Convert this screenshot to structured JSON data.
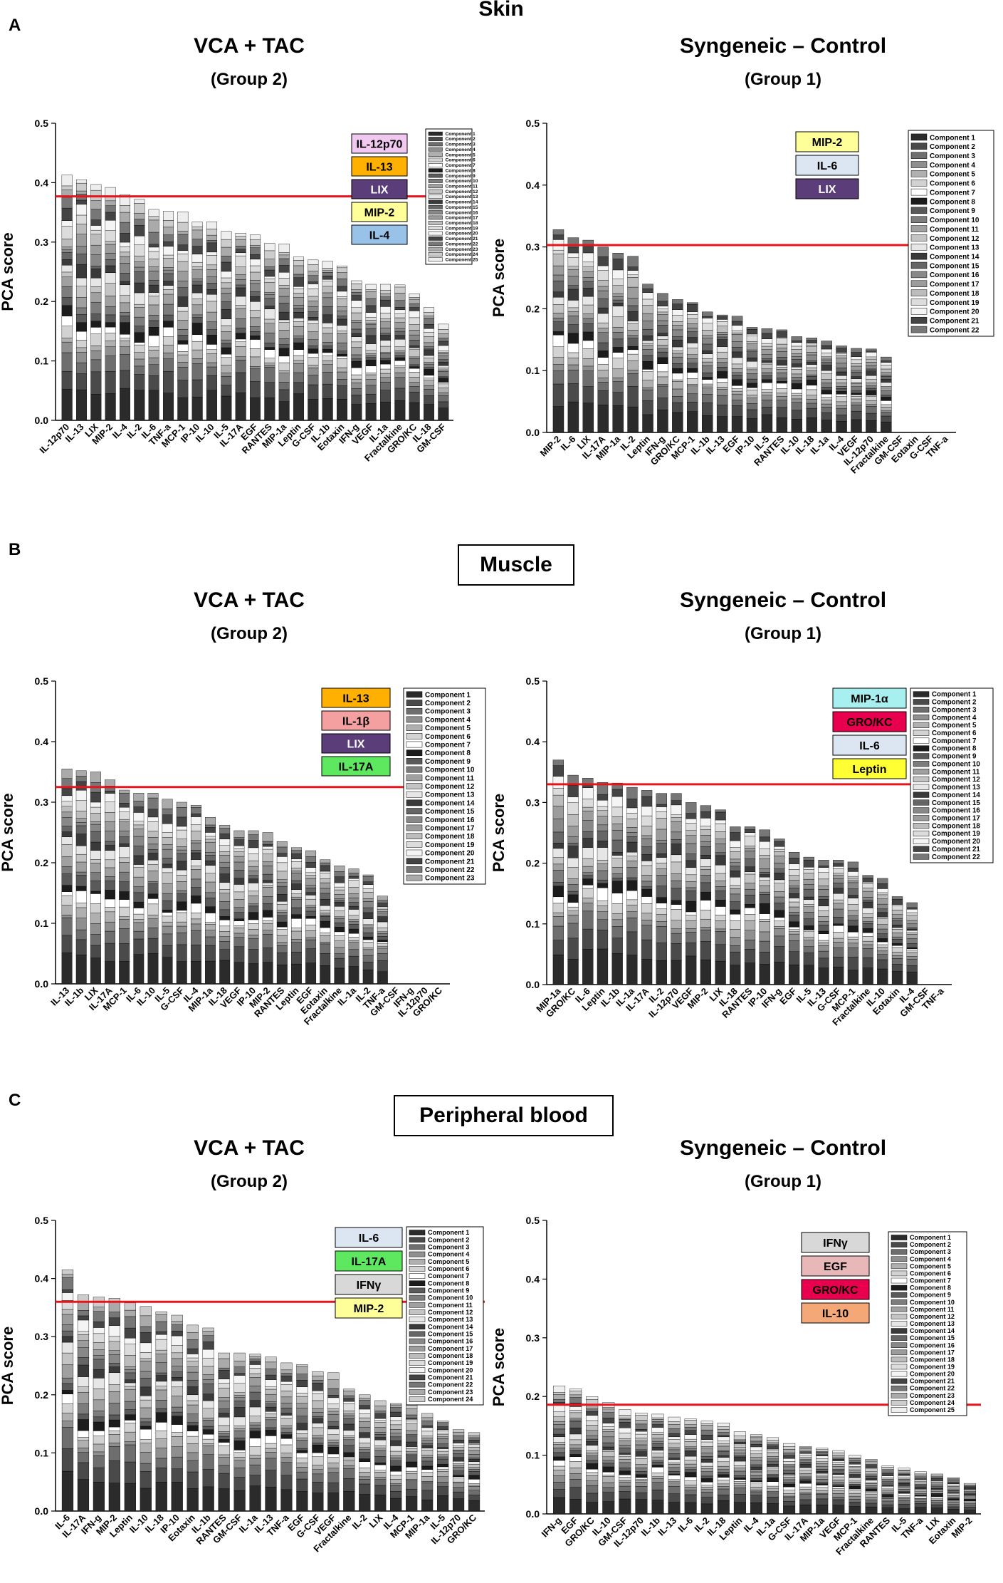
{
  "sections": [
    {
      "letter": "A",
      "title": "Skin"
    },
    {
      "letter": "B",
      "title": "Muscle"
    },
    {
      "letter": "C",
      "title": "Peripheral blood"
    }
  ],
  "chart_data": [
    {
      "type": "bar",
      "stacked": true,
      "section": "Skin",
      "title": "VCA + TAC",
      "subtitle": "(Group 2)",
      "ylabel": "PCA score",
      "ylim": [
        0,
        0.5
      ],
      "yticks": [
        "0.0",
        "0.1",
        "0.2",
        "0.3",
        "0.4",
        "0.5"
      ],
      "threshold": 0.377,
      "categories": [
        "IL-12p70",
        "IL-13",
        "LIX",
        "MIP-2",
        "IL-4",
        "IL-2",
        "IL-6",
        "TNF-a",
        "MCP-1",
        "IP-10",
        "IL-10",
        "IL-5",
        "IL-17A",
        "EGF",
        "RANTES",
        "MIP-1a",
        "Leptin",
        "G-CSF",
        "IL-1b",
        "Eotaxin",
        "IFN-g",
        "VEGF",
        "IL-1a",
        "Fractalkine",
        "GRO/KC",
        "IL-18",
        "GM-CSF"
      ],
      "values": [
        0.413,
        0.405,
        0.397,
        0.392,
        0.38,
        0.372,
        0.355,
        0.352,
        0.351,
        0.334,
        0.334,
        0.318,
        0.315,
        0.312,
        0.298,
        0.297,
        0.275,
        0.27,
        0.268,
        0.26,
        0.235,
        0.229,
        0.229,
        0.228,
        0.213,
        0.19,
        0.162
      ],
      "legend": [
        "Component 1",
        "Component 2",
        "Component 3",
        "Component 4",
        "Component 5",
        "Component 6",
        "Component 7",
        "Component 8",
        "Component 9",
        "Component 10",
        "Component 11",
        "Component 12",
        "Component 13",
        "Component 14",
        "Component 15",
        "Component 16",
        "Component 17",
        "Component 18",
        "Component 19",
        "Component 20",
        "Component 21",
        "Component 22",
        "Component 23",
        "Component 24",
        "Component 25"
      ],
      "highlights": [
        {
          "label": "IL-12p70",
          "color": "#f0c8f0"
        },
        {
          "label": "IL-13",
          "color": "#ffb000"
        },
        {
          "label": "LIX",
          "color": "#5b3d7a",
          "text_color": "#ffffff"
        },
        {
          "label": "MIP-2",
          "color": "#ffff99"
        },
        {
          "label": "IL-4",
          "color": "#99c2e8"
        }
      ]
    },
    {
      "type": "bar",
      "stacked": true,
      "section": "Skin",
      "title": "Syngeneic – Control",
      "subtitle": "(Group 1)",
      "ylabel": "PCA score",
      "ylim": [
        0,
        0.5
      ],
      "yticks": [
        "0.0",
        "0.1",
        "0.2",
        "0.3",
        "0.4",
        "0.5"
      ],
      "threshold": 0.303,
      "categories": [
        "MIP-2",
        "IL-6",
        "LIX",
        "IL-17A",
        "MIP-1a",
        "IL-2",
        "Leptin",
        "IFN-g",
        "GRO/KC",
        "MCP-1",
        "IL-1b",
        "IL-13",
        "EGF",
        "IP-10",
        "IL-5",
        "RANTES",
        "IL-10",
        "IL-18",
        "IL-1a",
        "IL-4",
        "VEGF",
        "IL-12p70",
        "Fractalkine",
        "GM-CSF",
        "Eotaxin",
        "G-CSF",
        "TNF-a"
      ],
      "values": [
        0.328,
        0.315,
        0.311,
        0.3,
        0.29,
        0.285,
        0.24,
        0.225,
        0.215,
        0.21,
        0.195,
        0.19,
        0.188,
        0.17,
        0.168,
        0.166,
        0.155,
        0.153,
        0.148,
        0.14,
        0.136,
        0.135,
        0.122,
        0,
        0,
        0,
        0
      ],
      "legend": [
        "Component 1",
        "Component 2",
        "Component 3",
        "Component 4",
        "Component 5",
        "Component 6",
        "Component 7",
        "Component 8",
        "Component 9",
        "Component 10",
        "Component 11",
        "Component 12",
        "Component 13",
        "Component 14",
        "Component 15",
        "Component 16",
        "Component 17",
        "Component 18",
        "Component 19",
        "Component 20",
        "Component 21",
        "Component 22"
      ],
      "highlights": [
        {
          "label": "MIP-2",
          "color": "#ffff99"
        },
        {
          "label": "IL-6",
          "color": "#dce6f2"
        },
        {
          "label": "LIX",
          "color": "#5b3d7a",
          "text_color": "#ffffff"
        }
      ]
    },
    {
      "type": "bar",
      "stacked": true,
      "section": "Muscle",
      "title": "VCA + TAC",
      "subtitle": "(Group 2)",
      "ylabel": "PCA score",
      "ylim": [
        0,
        0.5
      ],
      "yticks": [
        "0.0",
        "0.1",
        "0.2",
        "0.3",
        "0.4",
        "0.5"
      ],
      "threshold": 0.325,
      "categories": [
        "IL-13",
        "IL-1b",
        "LIX",
        "IL-17A",
        "MCP-1",
        "IL-6",
        "IL-10",
        "IL-5",
        "G-CSF",
        "IL-4",
        "MIP-1a",
        "IL-18",
        "VEGF",
        "IP-10",
        "MIP-2",
        "RANTES",
        "Leptin",
        "EGF",
        "Eotaxin",
        "Fractalkine",
        "IL-1a",
        "IL-2",
        "TNF-a",
        "GM-CSF",
        "IFN-g",
        "IL-12p70",
        "GRO/KC"
      ],
      "values": [
        0.355,
        0.352,
        0.35,
        0.337,
        0.32,
        0.315,
        0.315,
        0.305,
        0.3,
        0.295,
        0.275,
        0.262,
        0.253,
        0.253,
        0.25,
        0.235,
        0.225,
        0.22,
        0.205,
        0.195,
        0.19,
        0.18,
        0.145,
        0,
        0,
        0,
        0
      ],
      "legend": [
        "Component 1",
        "Component 2",
        "Component 3",
        "Component 4",
        "Component 5",
        "Component 6",
        "Component 7",
        "Component 8",
        "Component 9",
        "Component 10",
        "Component 11",
        "Component 12",
        "Component 13",
        "Component 14",
        "Component 15",
        "Component 16",
        "Component 17",
        "Component 18",
        "Component 19",
        "Component 20",
        "Component 21",
        "Component 22",
        "Component 23"
      ],
      "highlights": [
        {
          "label": "IL-13",
          "color": "#ffb000"
        },
        {
          "label": "IL-1β",
          "color": "#f4a0a0"
        },
        {
          "label": "LIX",
          "color": "#5b3d7a",
          "text_color": "#ffffff"
        },
        {
          "label": "IL-17A",
          "color": "#5ee860"
        }
      ]
    },
    {
      "type": "bar",
      "stacked": true,
      "section": "Muscle",
      "title": "Syngeneic – Control",
      "subtitle": "(Group 1)",
      "ylabel": "PCA score",
      "ylim": [
        0,
        0.5
      ],
      "yticks": [
        "0.0",
        "0.1",
        "0.2",
        "0.3",
        "0.4",
        "0.5"
      ],
      "threshold": 0.33,
      "categories": [
        "MIP-1a",
        "GRO/KC",
        "IL-6",
        "Leptin",
        "IL-1b",
        "IL-1a",
        "IL-17A",
        "IL-2",
        "IL-12p70",
        "VEGF",
        "MIP-2",
        "LIX",
        "IL-18",
        "RANTES",
        "IP-10",
        "IFN-g",
        "EGF",
        "IL-5",
        "IL-13",
        "G-CSF",
        "MCP-1",
        "Fractalkine",
        "IL-10",
        "Eotaxin",
        "IL-4",
        "GM-CSF",
        "TNF-a"
      ],
      "values": [
        0.37,
        0.345,
        0.34,
        0.333,
        0.332,
        0.325,
        0.32,
        0.315,
        0.315,
        0.3,
        0.295,
        0.288,
        0.26,
        0.26,
        0.255,
        0.24,
        0.218,
        0.21,
        0.205,
        0.205,
        0.202,
        0.18,
        0.175,
        0.145,
        0.135,
        0,
        0
      ],
      "legend": [
        "Component 1",
        "Component 2",
        "Component 3",
        "Component 4",
        "Component 5",
        "Component 6",
        "Component 7",
        "Component 8",
        "Component 9",
        "Component 10",
        "Component 11",
        "Component 12",
        "Component 13",
        "Component 14",
        "Component 15",
        "Component 16",
        "Component 17",
        "Component 18",
        "Component 19",
        "Component 20",
        "Component 21",
        "Component 22"
      ],
      "highlights": [
        {
          "label": "MIP-1α",
          "color": "#a8f0f0"
        },
        {
          "label": "GRO/KC",
          "color": "#e8004e",
          "text_color": "#000000"
        },
        {
          "label": "IL-6",
          "color": "#dce6f2"
        },
        {
          "label": "Leptin",
          "color": "#ffff33"
        }
      ]
    },
    {
      "type": "bar",
      "stacked": true,
      "section": "Peripheral blood",
      "title": "VCA + TAC",
      "subtitle": "(Group 2)",
      "ylabel": "PCA score",
      "ylim": [
        0,
        0.5
      ],
      "yticks": [
        "0.0",
        "0.1",
        "0.2",
        "0.3",
        "0.4",
        "0.5"
      ],
      "threshold": 0.36,
      "categories": [
        "IL-6",
        "IL-17A",
        "IFN-g",
        "MIP-2",
        "Leptin",
        "IL-10",
        "IL-18",
        "IP-10",
        "Eotaxin",
        "IL-1b",
        "RANTES",
        "GM-CSF",
        "IL-1a",
        "IL-13",
        "TNF-a",
        "EGF",
        "G-CSF",
        "VEGF",
        "Fractalkine",
        "IL-2",
        "LIX",
        "IL-4",
        "MCP-1",
        "MIP-1a",
        "IL-5",
        "IL-12p70",
        "GRO/KC"
      ],
      "values": [
        0.415,
        0.372,
        0.368,
        0.366,
        0.358,
        0.352,
        0.343,
        0.337,
        0.32,
        0.315,
        0.272,
        0.272,
        0.27,
        0.265,
        0.255,
        0.252,
        0.24,
        0.238,
        0.21,
        0.2,
        0.19,
        0.185,
        0.182,
        0.168,
        0.155,
        0.14,
        0.135
      ],
      "legend": [
        "Component 1",
        "Component 2",
        "Component 3",
        "Component 4",
        "Component 5",
        "Component 6",
        "Component 7",
        "Component 8",
        "Component 9",
        "Component 10",
        "Component 11",
        "Component 12",
        "Component 13",
        "Component 14",
        "Component 15",
        "Component 16",
        "Component 17",
        "Component 18",
        "Component 19",
        "Component 20",
        "Component 21",
        "Component 22",
        "Component 23",
        "Component 24"
      ],
      "highlights": [
        {
          "label": "IL-6",
          "color": "#dce6f2"
        },
        {
          "label": "IL-17A",
          "color": "#5ee860"
        },
        {
          "label": "IFNγ",
          "color": "#d8d8d8"
        },
        {
          "label": "MIP-2",
          "color": "#ffff99"
        }
      ]
    },
    {
      "type": "bar",
      "stacked": true,
      "section": "Peripheral blood",
      "title": "Syngeneic – Control",
      "subtitle": "(Group 1)",
      "ylabel": "PCA score",
      "ylim": [
        0,
        0.5
      ],
      "yticks": [
        "0.0",
        "0.1",
        "0.2",
        "0.3",
        "0.4",
        "0.5"
      ],
      "threshold": 0.186,
      "categories": [
        "IFN-g",
        "EGF",
        "GRO/KC",
        "IL-10",
        "GM-CSF",
        "IL-12p70",
        "IL-1b",
        "IL-13",
        "IL-6",
        "IL-2",
        "IL-18",
        "Leptin",
        "IL-4",
        "IL-1a",
        "G-CSF",
        "IL-17A",
        "MIP-1a",
        "VEGF",
        "MCP-1",
        "Fractalkine",
        "RANTES",
        "IL-5",
        "TNF-a",
        "LIX",
        "Eotaxin",
        "MIP-2"
      ],
      "values": [
        0.218,
        0.213,
        0.2,
        0.19,
        0.178,
        0.172,
        0.17,
        0.165,
        0.162,
        0.158,
        0.155,
        0.14,
        0.135,
        0.13,
        0.12,
        0.115,
        0.112,
        0.108,
        0.1,
        0.093,
        0.082,
        0.078,
        0.072,
        0.068,
        0.062,
        0.052
      ],
      "legend": [
        "Component 1",
        "Component 2",
        "Component 3",
        "Component 4",
        "Component 5",
        "Component 6",
        "Component 7",
        "Component 8",
        "Component 9",
        "Component 10",
        "Component 11",
        "Component 12",
        "Component 13",
        "Component 14",
        "Component 15",
        "Component 16",
        "Component 17",
        "Component 18",
        "Component 19",
        "Component 20",
        "Component 21",
        "Component 22",
        "Component 23",
        "Component 24",
        "Component 25"
      ],
      "highlights": [
        {
          "label": "IFNγ",
          "color": "#d8d8d8"
        },
        {
          "label": "EGF",
          "color": "#e8b8b8"
        },
        {
          "label": "GRO/KC",
          "color": "#e8004e",
          "text_color": "#000000"
        },
        {
          "label": "IL-10",
          "color": "#f4a878"
        }
      ]
    }
  ]
}
